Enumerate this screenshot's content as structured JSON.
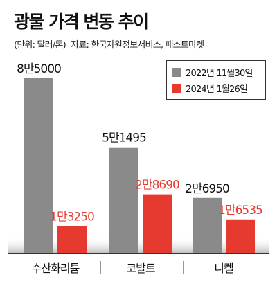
{
  "title": "광물 가격 변동 추이",
  "unit": "(단위: 달러/톤)",
  "source": "자료: 한국자원정보서비스, 패스트마켓",
  "colors": {
    "series_2022": "#8a8a8a",
    "series_2024": "#e63a30",
    "axis": "#333333"
  },
  "chart_data": {
    "type": "bar",
    "title": "광물 가격 변동 추이",
    "unit": "(단위: 달러/톤)",
    "categories": [
      "수산화리튬",
      "코발트",
      "니켈"
    ],
    "series": [
      {
        "name": "2022년 11월30일",
        "values": [
          85000,
          51495,
          26950
        ],
        "labels": [
          "8만5000",
          "5만1495",
          "2만6950"
        ]
      },
      {
        "name": "2024년 1월26일",
        "values": [
          13250,
          28690,
          16535
        ],
        "labels": [
          "1만3250",
          "2만8690",
          "1만6535"
        ]
      }
    ],
    "ylim": [
      0,
      85000
    ],
    "grid": false,
    "legend_position": "top-right"
  }
}
